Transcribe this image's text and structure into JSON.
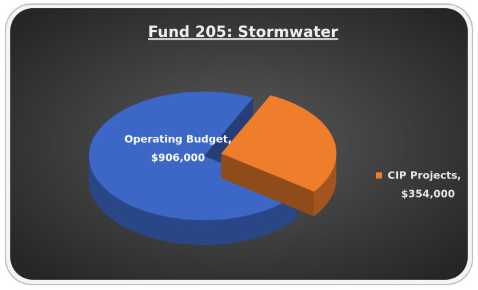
{
  "chart_data": {
    "type": "pie3d",
    "title": "Fund 205: Stormwater",
    "categories": [
      "Operating Budget,",
      "CIP Projects,"
    ],
    "values": [
      906000,
      354000
    ],
    "value_labels": [
      "$906,000",
      "$354,000"
    ],
    "colors": [
      "#3d67c6",
      "#ee7d2c"
    ],
    "exploded": [
      false,
      true
    ]
  }
}
